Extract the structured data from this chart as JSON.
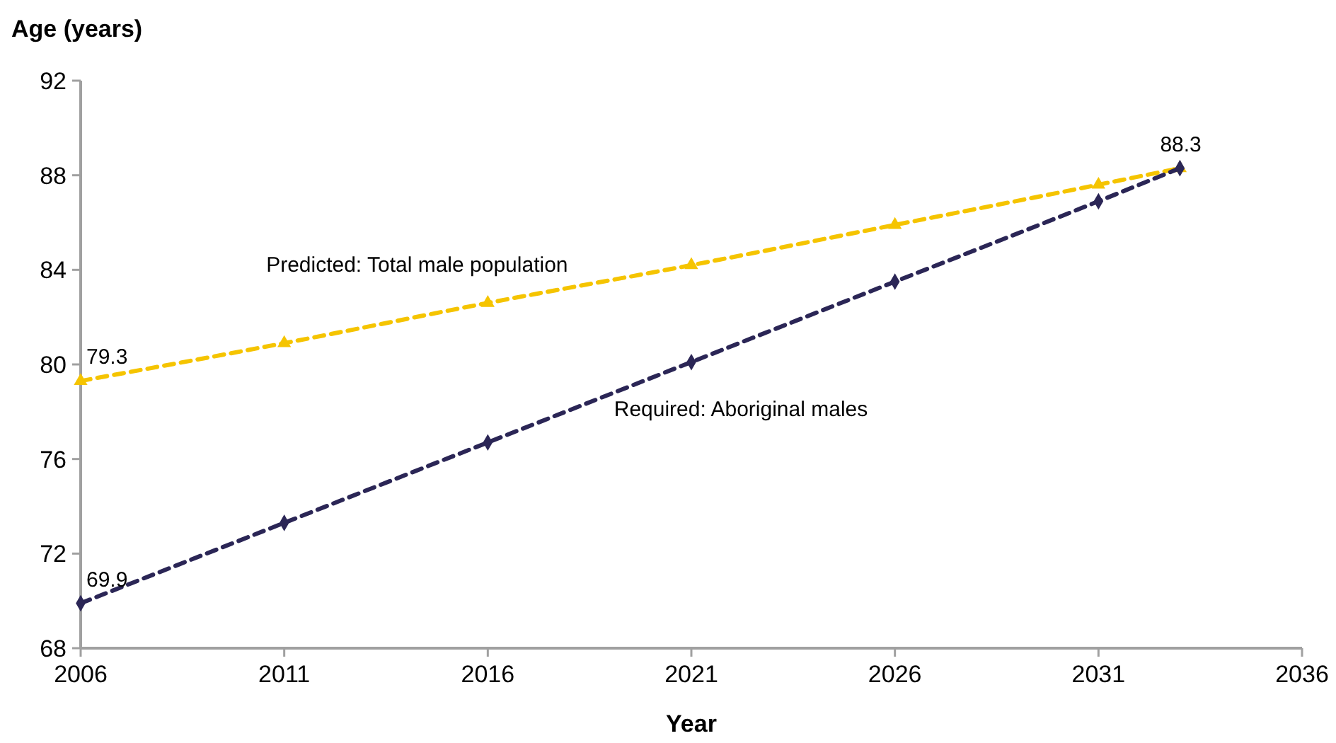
{
  "chart_data": {
    "type": "line",
    "ylabel": "Age (years)",
    "xlabel": "Year",
    "xlim": [
      2006,
      2036
    ],
    "xticks": [
      2006,
      2011,
      2016,
      2021,
      2026,
      2031,
      2036
    ],
    "ylim": [
      68,
      92
    ],
    "yticks": [
      68,
      72,
      76,
      80,
      84,
      88,
      92
    ],
    "grid": false,
    "line_style": "dashed",
    "series": [
      {
        "name": "Predicted: Total male population",
        "color": "#f5c400",
        "marker": "triangle",
        "x": [
          2006,
          2011,
          2016,
          2021,
          2026,
          2031,
          2033
        ],
        "values": [
          79.3,
          80.9,
          82.6,
          84.2,
          85.9,
          87.6,
          88.3
        ],
        "value_labels": [
          "79.3",
          null,
          null,
          null,
          null,
          null,
          "88.3"
        ]
      },
      {
        "name": "Required: Aboriginal males",
        "color": "#2b2656",
        "marker": "diamond",
        "x": [
          2006,
          2011,
          2016,
          2021,
          2026,
          2031,
          2033
        ],
        "values": [
          69.9,
          73.3,
          76.7,
          80.1,
          83.5,
          86.9,
          88.3
        ],
        "value_labels": [
          "69.9",
          null,
          null,
          null,
          null,
          null,
          null
        ]
      }
    ]
  }
}
